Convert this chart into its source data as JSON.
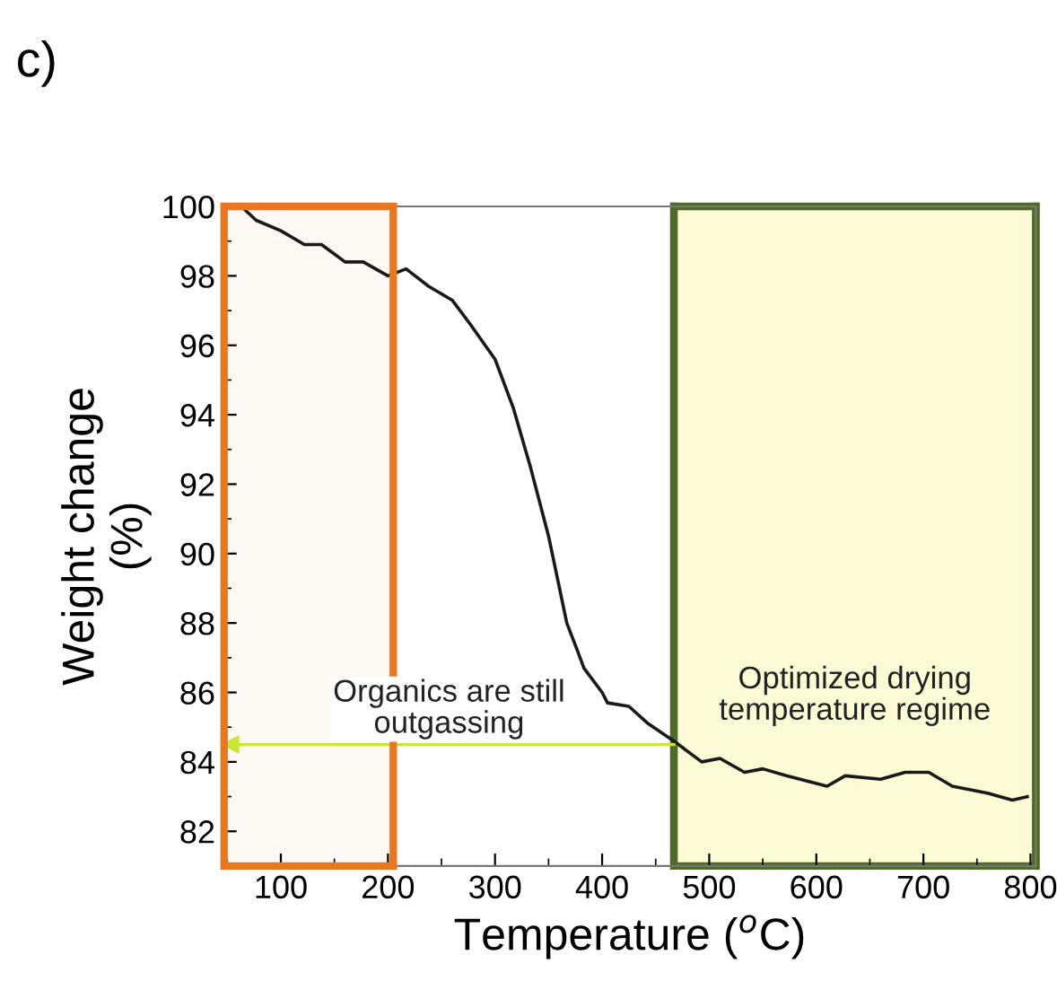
{
  "chart_data": {
    "type": "line",
    "title": "c)",
    "xlabel": "Temperature ($^{o}$C)",
    "ylabel": "Weight change\n(%)",
    "x": [
      63,
      77,
      100,
      122,
      138,
      160,
      177,
      200,
      217,
      238,
      260,
      277,
      300,
      317,
      333,
      350,
      367,
      377,
      383,
      400,
      405,
      425,
      443,
      467,
      493,
      510,
      533,
      550,
      572,
      610,
      627,
      660,
      683,
      705,
      727,
      760,
      783,
      797
    ],
    "series": [
      {
        "color": "#1a1a1a",
        "values": [
          100,
          99.6,
          99.3,
          98.9,
          98.9,
          98.4,
          98.4,
          98.0,
          98.2,
          97.7,
          97.3,
          96.6,
          95.6,
          94.2,
          92.5,
          90.5,
          88.0,
          87.2,
          86.7,
          86.0,
          85.7,
          85.6,
          85.1,
          84.6,
          84.0,
          84.1,
          83.7,
          83.8,
          83.6,
          83.3,
          83.6,
          83.5,
          83.7,
          83.7,
          83.3,
          83.1,
          82.9,
          83.0
        ]
      }
    ],
    "xlim": [
      47,
      805
    ],
    "ylim": [
      81,
      100
    ],
    "xticks": [
      100,
      200,
      300,
      400,
      500,
      600,
      700,
      800
    ],
    "yticks": [
      82,
      84,
      86,
      88,
      90,
      92,
      94,
      96,
      98,
      100
    ],
    "bands": [
      {
        "axis": "x",
        "from": 47,
        "to": 205,
        "color": "#e87722"
      },
      {
        "axis": "x",
        "from": 467,
        "to": 805,
        "color": "#fdfbd6",
        "label": "Optimized drying\ntemperature regime"
      }
    ],
    "ref_lines": [
      {
        "axis": "x",
        "value": 467,
        "color": "#4f6b2a"
      },
      {
        "axis": "x",
        "value": 805,
        "color": "#4f6b2a"
      },
      {
        "axis": "y",
        "value": 84.5,
        "color": "#c8e63c"
      }
    ],
    "annotations": [
      "Organics are still\noutgassing"
    ],
    "grid": false,
    "legend": false,
    "marker": "none",
    "line_style": "solid"
  }
}
